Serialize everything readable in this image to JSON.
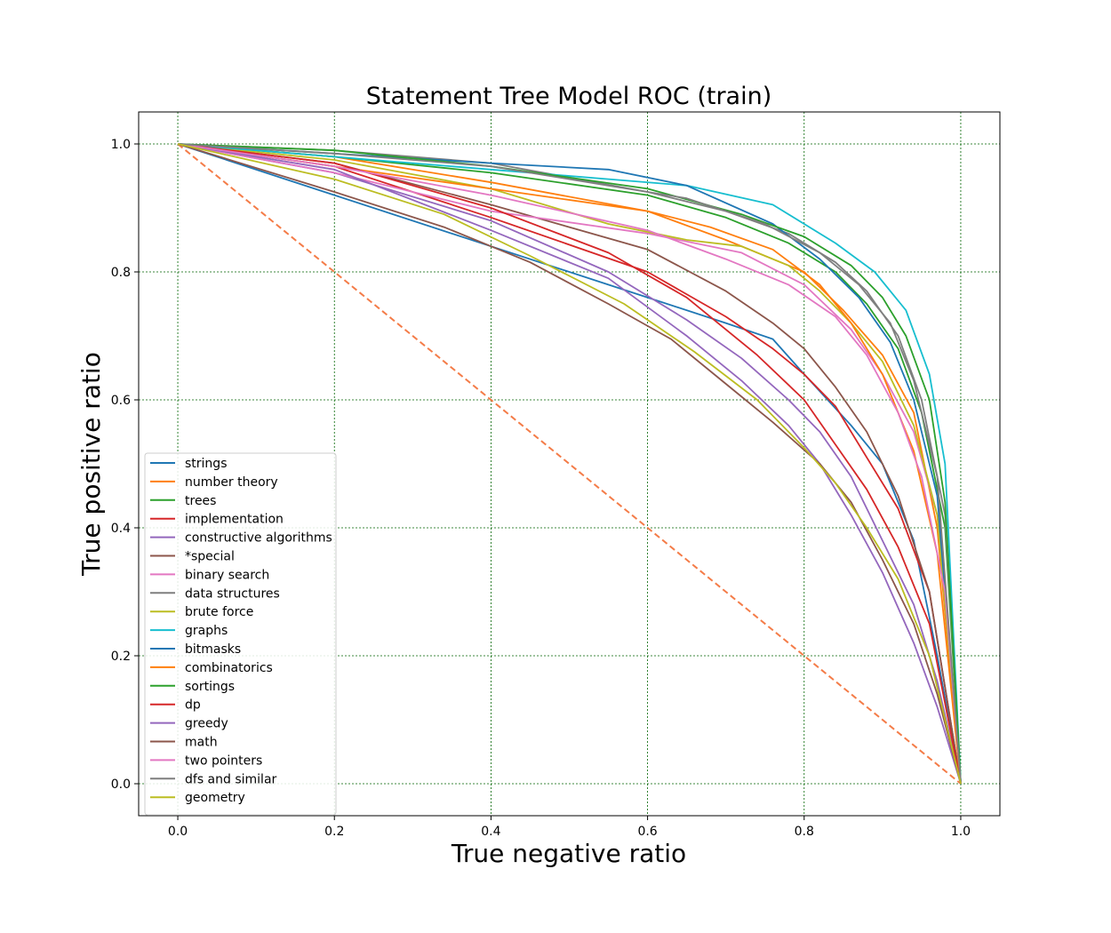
{
  "chart_data": {
    "type": "line",
    "title": "Statement Tree Model ROC (train)",
    "xlabel": "True negative ratio",
    "ylabel": "True positive ratio",
    "xlim": [
      -0.05,
      1.05
    ],
    "ylim": [
      -0.05,
      1.05
    ],
    "xticks": [
      "0.0",
      "0.2",
      "0.4",
      "0.6",
      "0.8",
      "1.0"
    ],
    "yticks": [
      "0.0",
      "0.2",
      "0.4",
      "0.6",
      "0.8",
      "1.0"
    ],
    "grid": true,
    "grid_color": "#006400",
    "legend_location": "lower-left",
    "diagonal": {
      "x": [
        0,
        1
      ],
      "y": [
        1,
        0
      ],
      "color": "#f47c48",
      "style": "dashed"
    },
    "series": [
      {
        "name": "strings",
        "color": "#1f77b4",
        "x": [
          0,
          0.2,
          0.4,
          0.55,
          0.7,
          0.76,
          0.8,
          0.86,
          0.9,
          0.94,
          0.97,
          1.0
        ],
        "y": [
          1,
          0.92,
          0.84,
          0.78,
          0.72,
          0.695,
          0.64,
          0.56,
          0.5,
          0.38,
          0.2,
          0
        ]
      },
      {
        "name": "number theory",
        "color": "#ff7f0e",
        "x": [
          0,
          0.2,
          0.4,
          0.6,
          0.7,
          0.76,
          0.8,
          0.85,
          0.9,
          0.94,
          0.97,
          1.0
        ],
        "y": [
          1,
          0.98,
          0.94,
          0.895,
          0.85,
          0.82,
          0.8,
          0.74,
          0.67,
          0.58,
          0.4,
          0
        ]
      },
      {
        "name": "trees",
        "color": "#2ca02c",
        "x": [
          0,
          0.2,
          0.4,
          0.6,
          0.7,
          0.78,
          0.84,
          0.88,
          0.92,
          0.95,
          0.98,
          1.0
        ],
        "y": [
          1,
          0.98,
          0.955,
          0.92,
          0.885,
          0.845,
          0.8,
          0.75,
          0.68,
          0.58,
          0.4,
          0
        ]
      },
      {
        "name": "implementation",
        "color": "#d62728",
        "x": [
          0,
          0.2,
          0.4,
          0.6,
          0.7,
          0.76,
          0.8,
          0.84,
          0.88,
          0.92,
          0.96,
          1.0
        ],
        "y": [
          1,
          0.965,
          0.885,
          0.8,
          0.73,
          0.68,
          0.64,
          0.59,
          0.51,
          0.43,
          0.3,
          0
        ]
      },
      {
        "name": "constructive algorithms",
        "color": "#9467bd",
        "x": [
          0,
          0.2,
          0.4,
          0.55,
          0.65,
          0.72,
          0.78,
          0.82,
          0.86,
          0.9,
          0.94,
          0.97,
          1.0
        ],
        "y": [
          1,
          0.955,
          0.88,
          0.8,
          0.725,
          0.665,
          0.6,
          0.55,
          0.48,
          0.38,
          0.28,
          0.16,
          0
        ]
      },
      {
        "name": "*special",
        "color": "#8c564b",
        "x": [
          0,
          0.2,
          0.4,
          0.6,
          0.7,
          0.76,
          0.8,
          0.84,
          0.88,
          0.92,
          0.96,
          1.0
        ],
        "y": [
          1,
          0.97,
          0.905,
          0.835,
          0.77,
          0.72,
          0.68,
          0.62,
          0.55,
          0.45,
          0.3,
          0
        ]
      },
      {
        "name": "binary search",
        "color": "#e377c2",
        "x": [
          0,
          0.2,
          0.4,
          0.6,
          0.72,
          0.8,
          0.86,
          0.9,
          0.94,
          0.97,
          1.0
        ],
        "y": [
          1,
          0.955,
          0.895,
          0.86,
          0.83,
          0.78,
          0.71,
          0.64,
          0.55,
          0.42,
          0
        ]
      },
      {
        "name": "data structures",
        "color": "#7f7f7f",
        "x": [
          0,
          0.2,
          0.4,
          0.6,
          0.7,
          0.78,
          0.84,
          0.88,
          0.92,
          0.95,
          0.98,
          1.0
        ],
        "y": [
          1,
          0.99,
          0.97,
          0.925,
          0.895,
          0.86,
          0.815,
          0.77,
          0.7,
          0.6,
          0.42,
          0
        ]
      },
      {
        "name": "brute force",
        "color": "#bcbd22",
        "x": [
          0,
          0.2,
          0.4,
          0.55,
          0.65,
          0.72,
          0.78,
          0.82,
          0.86,
          0.9,
          0.94,
          0.97,
          1.0
        ],
        "y": [
          1,
          0.975,
          0.93,
          0.875,
          0.85,
          0.84,
          0.81,
          0.77,
          0.72,
          0.66,
          0.56,
          0.42,
          0
        ]
      },
      {
        "name": "graphs",
        "color": "#17becf",
        "x": [
          0,
          0.2,
          0.4,
          0.55,
          0.65,
          0.76,
          0.84,
          0.89,
          0.93,
          0.96,
          0.98,
          1.0
        ],
        "y": [
          1,
          0.98,
          0.96,
          0.945,
          0.935,
          0.905,
          0.845,
          0.8,
          0.74,
          0.64,
          0.5,
          0
        ]
      },
      {
        "name": "bitmasks",
        "color": "#1f77b4",
        "x": [
          0,
          0.2,
          0.4,
          0.55,
          0.65,
          0.76,
          0.82,
          0.87,
          0.91,
          0.94,
          0.97,
          1.0
        ],
        "y": [
          1,
          0.985,
          0.97,
          0.96,
          0.935,
          0.875,
          0.82,
          0.76,
          0.69,
          0.6,
          0.45,
          0
        ]
      },
      {
        "name": "combinatorics",
        "color": "#ff7f0e",
        "x": [
          0,
          0.2,
          0.4,
          0.6,
          0.68,
          0.76,
          0.82,
          0.86,
          0.9,
          0.94,
          0.97,
          1.0
        ],
        "y": [
          1,
          0.965,
          0.93,
          0.895,
          0.87,
          0.835,
          0.78,
          0.72,
          0.64,
          0.52,
          0.36,
          0
        ]
      },
      {
        "name": "sortings",
        "color": "#2ca02c",
        "x": [
          0,
          0.2,
          0.4,
          0.6,
          0.72,
          0.8,
          0.86,
          0.9,
          0.93,
          0.96,
          0.98,
          1.0
        ],
        "y": [
          1,
          0.99,
          0.965,
          0.93,
          0.89,
          0.855,
          0.81,
          0.76,
          0.7,
          0.6,
          0.44,
          0
        ]
      },
      {
        "name": "dp",
        "color": "#d62728",
        "x": [
          0,
          0.2,
          0.4,
          0.55,
          0.65,
          0.74,
          0.8,
          0.84,
          0.88,
          0.92,
          0.96,
          1.0
        ],
        "y": [
          1,
          0.97,
          0.9,
          0.83,
          0.76,
          0.67,
          0.6,
          0.53,
          0.46,
          0.37,
          0.25,
          0
        ]
      },
      {
        "name": "greedy",
        "color": "#9467bd",
        "x": [
          0,
          0.2,
          0.4,
          0.55,
          0.65,
          0.72,
          0.78,
          0.82,
          0.86,
          0.9,
          0.94,
          0.97,
          1.0
        ],
        "y": [
          1,
          0.96,
          0.865,
          0.79,
          0.7,
          0.63,
          0.56,
          0.5,
          0.42,
          0.33,
          0.22,
          0.12,
          0
        ]
      },
      {
        "name": "math",
        "color": "#8c564b",
        "x": [
          0,
          0.2,
          0.34,
          0.45,
          0.55,
          0.63,
          0.7,
          0.76,
          0.82,
          0.86,
          0.9,
          0.94,
          0.97,
          1.0
        ],
        "y": [
          1,
          0.925,
          0.87,
          0.815,
          0.75,
          0.695,
          0.625,
          0.565,
          0.5,
          0.44,
          0.35,
          0.25,
          0.14,
          0
        ]
      },
      {
        "name": "two pointers",
        "color": "#e377c2",
        "x": [
          0,
          0.2,
          0.4,
          0.6,
          0.7,
          0.78,
          0.84,
          0.88,
          0.92,
          0.95,
          0.98,
          1.0
        ],
        "y": [
          1,
          0.965,
          0.92,
          0.865,
          0.82,
          0.78,
          0.73,
          0.67,
          0.58,
          0.48,
          0.3,
          0
        ]
      },
      {
        "name": "dfs and similar",
        "color": "#7f7f7f",
        "x": [
          0,
          0.2,
          0.4,
          0.55,
          0.65,
          0.75,
          0.82,
          0.87,
          0.91,
          0.94,
          0.97,
          1.0
        ],
        "y": [
          1,
          0.985,
          0.965,
          0.935,
          0.915,
          0.875,
          0.83,
          0.78,
          0.72,
          0.63,
          0.48,
          0
        ]
      },
      {
        "name": "geometry",
        "color": "#bcbd22",
        "x": [
          0,
          0.2,
          0.34,
          0.45,
          0.57,
          0.66,
          0.74,
          0.8,
          0.84,
          0.88,
          0.92,
          0.96,
          1.0
        ],
        "y": [
          1,
          0.945,
          0.89,
          0.825,
          0.75,
          0.675,
          0.6,
          0.525,
          0.47,
          0.4,
          0.32,
          0.2,
          0
        ]
      }
    ]
  }
}
